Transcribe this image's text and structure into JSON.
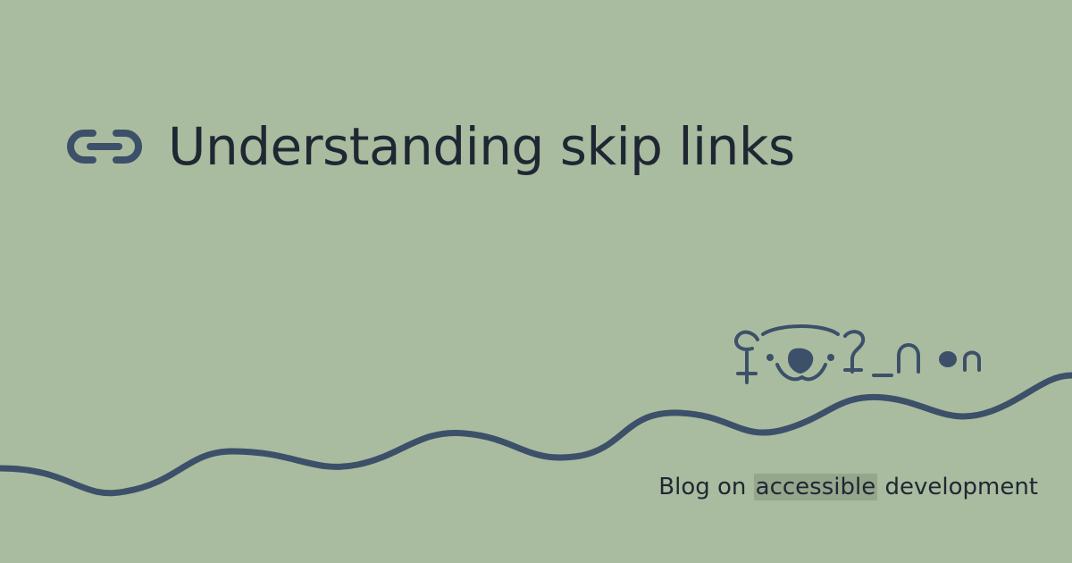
{
  "title": "Understanding skip links",
  "tagline": {
    "before": "Blog on",
    "highlight": "accessible",
    "after": "development"
  },
  "icons": {
    "title_icon": "link-icon",
    "mascot": "koala-peeking-icon"
  },
  "colors": {
    "background": "#a9bc9f",
    "text": "#1f2733",
    "accent": "#3d5069",
    "highlight": "#96a68d"
  }
}
